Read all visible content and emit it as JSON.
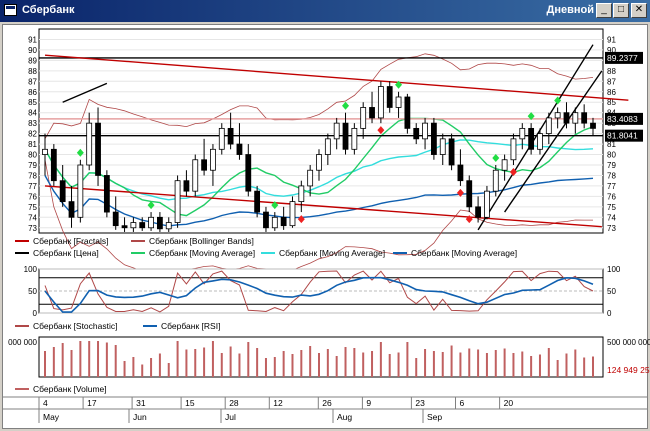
{
  "window": {
    "title": "Сбербанк",
    "period": "Дневной",
    "buttons": {
      "minimize": "_",
      "maximize": "□",
      "close": "✕"
    }
  },
  "chart_data": [
    {
      "type": "line",
      "title": "",
      "panel": "price",
      "ylim": [
        72.5,
        92
      ],
      "y_ticks": [
        "91",
        "90",
        "89",
        "88",
        "87",
        "86",
        "85",
        "84",
        "83",
        "82",
        "81",
        "80",
        "79",
        "78",
        "77",
        "76",
        "75",
        "74",
        "73"
      ],
      "last_price_labels": [
        {
          "text": "89.2377",
          "value": 89.2377
        },
        {
          "text": "83.4083",
          "value": 83.4083
        },
        {
          "text": "81.8041",
          "value": 81.8041
        }
      ],
      "legend": [
        {
          "name": "Сбербанк [Fractals]",
          "color": "#c00000"
        },
        {
          "name": "Сбербанк [Bollinger Bands]",
          "color": "#b04848"
        },
        {
          "name": "Сбербанк [Цена]",
          "color": "#000000"
        },
        {
          "name": "Сбербанк [Moving Average]",
          "color": "#22cc66"
        },
        {
          "name": "Сбербанк [Moving Average]",
          "color": "#33dddd"
        },
        {
          "name": "Сбербанк [Moving Average]",
          "color": "#1060b0"
        }
      ],
      "candles": [
        [
          80,
          82,
          78,
          80.5
        ],
        [
          80.5,
          81,
          77,
          77.5
        ],
        [
          77.5,
          79,
          75,
          75.5
        ],
        [
          75.5,
          77,
          73,
          74
        ],
        [
          74,
          79.5,
          73.5,
          79
        ],
        [
          79,
          84,
          78.5,
          83
        ],
        [
          83,
          84.5,
          77,
          78
        ],
        [
          78,
          78.5,
          74,
          74.5
        ],
        [
          74.5,
          76,
          72.8,
          73.2
        ],
        [
          73.2,
          74,
          72.6,
          73
        ],
        [
          73,
          74,
          72.6,
          73.5
        ],
        [
          73.5,
          74,
          72.7,
          73
        ],
        [
          73,
          74.5,
          72.7,
          74
        ],
        [
          74,
          74.5,
          72.6,
          72.9
        ],
        [
          72.9,
          74,
          72.6,
          73.5
        ],
        [
          73.5,
          78,
          73,
          77.5
        ],
        [
          77.5,
          78.5,
          76,
          76.5
        ],
        [
          76.5,
          80,
          76,
          79.5
        ],
        [
          79.5,
          81.5,
          78,
          78.5
        ],
        [
          78.5,
          81,
          77,
          80.5
        ],
        [
          80.5,
          83,
          80,
          82.5
        ],
        [
          82.5,
          84,
          80.5,
          81
        ],
        [
          81,
          83,
          79.5,
          80
        ],
        [
          80,
          81,
          76,
          76.5
        ],
        [
          76.5,
          77,
          74,
          74.5
        ],
        [
          74.5,
          75,
          72.6,
          73
        ],
        [
          73,
          74.5,
          72.7,
          74
        ],
        [
          74,
          75,
          72.8,
          73.2
        ],
        [
          73.2,
          76,
          73,
          75.5
        ],
        [
          75.5,
          77.5,
          74.5,
          77
        ],
        [
          77,
          79,
          76,
          78.5
        ],
        [
          78.5,
          80.5,
          77.5,
          80
        ],
        [
          80,
          82,
          79,
          81.5
        ],
        [
          81.5,
          83.5,
          80.5,
          83
        ],
        [
          83,
          84,
          80,
          80.5
        ],
        [
          80.5,
          83,
          80,
          82.5
        ],
        [
          82.5,
          85,
          81.5,
          84.5
        ],
        [
          84.5,
          86,
          83,
          83.5
        ],
        [
          83.5,
          87,
          83,
          86.5
        ],
        [
          86.5,
          87,
          84,
          84.5
        ],
        [
          84.5,
          86,
          83.5,
          85.5
        ],
        [
          85.5,
          85.8,
          82,
          82.5
        ],
        [
          82.5,
          83,
          81,
          81.5
        ],
        [
          81.5,
          83.5,
          80.5,
          83
        ],
        [
          83,
          83.5,
          79.5,
          80
        ],
        [
          80,
          82,
          79,
          81.5
        ],
        [
          81.5,
          82,
          78.5,
          79
        ],
        [
          79,
          80.5,
          77,
          77.5
        ],
        [
          77.5,
          78,
          74.5,
          75
        ],
        [
          75,
          76,
          73.5,
          74
        ],
        [
          74,
          77,
          73.8,
          76.5
        ],
        [
          76.5,
          79,
          76,
          78.5
        ],
        [
          78.5,
          80,
          77.5,
          79.5
        ],
        [
          79.5,
          82,
          79,
          81.5
        ],
        [
          81.5,
          83,
          80.5,
          82.5
        ],
        [
          82.5,
          83,
          80,
          80.5
        ],
        [
          80.5,
          82.5,
          80,
          82
        ],
        [
          82,
          84,
          81,
          83.5
        ],
        [
          83.5,
          84.5,
          82.5,
          84
        ],
        [
          84,
          85,
          82.5,
          83
        ],
        [
          83,
          84.5,
          82,
          84
        ],
        [
          84,
          84.8,
          82.5,
          83
        ],
        [
          83,
          83.5,
          81.8,
          82.5
        ]
      ],
      "fractals_up": [
        4,
        12,
        26,
        34,
        40,
        51,
        55,
        58
      ],
      "fractals_down": [
        29,
        38,
        47,
        48,
        53
      ],
      "trendlines": [
        {
          "from": [
            0,
            89.5
          ],
          "to": [
            66,
            85.2
          ],
          "color": "#c00000"
        },
        {
          "from": [
            0,
            77
          ],
          "to": [
            63,
            73.1
          ],
          "color": "#c00000"
        },
        {
          "from": [
            2,
            85
          ],
          "to": [
            7,
            86.8
          ],
          "color": "#000000"
        },
        {
          "from": [
            49,
            72.8
          ],
          "to": [
            62,
            90.5
          ],
          "color": "#000000"
        },
        {
          "from": [
            52,
            74.5
          ],
          "to": [
            63,
            88
          ],
          "color": "#000000"
        }
      ],
      "hlines": [
        {
          "value": 89.2377,
          "color": "#000000"
        },
        {
          "value": 81.8041,
          "color": "#000000"
        },
        {
          "value": 83.4083,
          "color": "#e6a0a0"
        }
      ]
    },
    {
      "type": "line",
      "panel": "oscillators",
      "ylim": [
        0,
        100
      ],
      "y_ticks": [
        "100",
        "50",
        "0"
      ],
      "levels": [
        0,
        20,
        50,
        80,
        100
      ],
      "legend": [
        {
          "name": "Сбербанк [Stochastic]",
          "color": "#b04848"
        },
        {
          "name": "Сбербанк [RSI]",
          "color": "#1060b0"
        }
      ]
    },
    {
      "type": "bar",
      "panel": "volume",
      "ylim": [
        0,
        520000000
      ],
      "y_ticks": [
        "500 000 000"
      ],
      "y_ticks_left": [
        "000 000"
      ],
      "last_value": "124 949 25",
      "legend": [
        {
          "name": "Сбербанк [Volume]",
          "color": "#c06060"
        }
      ]
    }
  ],
  "time_axis": {
    "day_labels": [
      "4",
      "17",
      "31",
      "15",
      "28",
      "12",
      "26",
      "9",
      "23",
      "6",
      "20"
    ],
    "month_labels": [
      "May",
      "Jun",
      "Jul",
      "Aug",
      "Sep"
    ]
  }
}
